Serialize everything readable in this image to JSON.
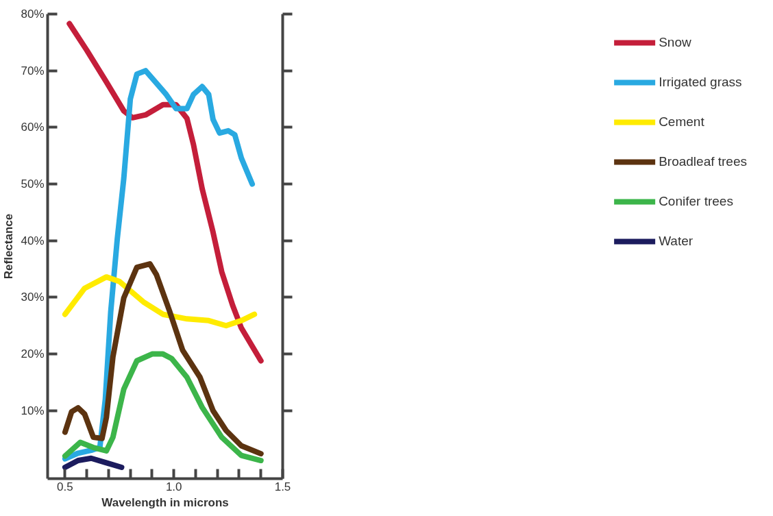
{
  "chart_data": {
    "type": "line",
    "xlabel": "Wavelength in microns",
    "ylabel": "Reflectance",
    "xlim": [
      0.42,
      1.5
    ],
    "ylim": [
      -2,
      80
    ],
    "xticks": [
      0.5,
      {
        "value": 0.6,
        "label": null
      },
      {
        "value": 0.7,
        "label": null
      },
      {
        "value": 0.8,
        "label": null
      },
      {
        "value": 0.9,
        "label": null
      },
      {
        "value": 1.0,
        "label": "1.0"
      },
      {
        "value": 1.1,
        "label": null
      },
      {
        "value": 1.2,
        "label": null
      },
      {
        "value": 1.3,
        "label": null
      },
      {
        "value": 1.4,
        "label": null
      },
      1.5
    ],
    "yticks": [
      {
        "value": 10,
        "label": "10%"
      },
      {
        "value": 20,
        "label": "20%"
      },
      {
        "value": 30,
        "label": "30%"
      },
      {
        "value": 40,
        "label": "40%"
      },
      {
        "value": 50,
        "label": "50%"
      },
      {
        "value": 60,
        "label": "60%"
      },
      {
        "value": 70,
        "label": "70%"
      },
      {
        "value": 80,
        "label": "80%"
      }
    ],
    "grid": false,
    "legend": "right",
    "marker": "none",
    "line_style": "solid",
    "series": [
      {
        "name": "Snow",
        "color": "#c41e3a",
        "x": [
          0.52,
          0.6,
          0.69,
          0.77,
          0.81,
          0.87,
          0.95,
          1.01,
          1.06,
          1.09,
          1.13,
          1.18,
          1.22,
          1.27,
          1.31,
          1.4
        ],
        "values": [
          78.3,
          73.6,
          68.0,
          62.9,
          61.7,
          62.2,
          64,
          64,
          61.6,
          57,
          49.2,
          41.5,
          34.5,
          28.6,
          24.6,
          18.8
        ]
      },
      {
        "name": "Irrigated grass",
        "color": "#29a9e1",
        "x": [
          0.5,
          0.56,
          0.62,
          0.66,
          0.685,
          0.71,
          0.74,
          0.77,
          0.8,
          0.83,
          0.87,
          0.92,
          0.965,
          1.01,
          1.06,
          1.09,
          1.13,
          1.16,
          1.18,
          1.21,
          1.25,
          1.28,
          1.31,
          1.36
        ],
        "values": [
          1.5,
          2.5,
          3,
          3.5,
          12,
          27.5,
          40.3,
          51,
          65,
          69.4,
          70,
          67.8,
          65.8,
          63.3,
          63.3,
          65.8,
          67.2,
          65.8,
          61.4,
          59,
          59.4,
          58.7,
          54.6,
          50
        ]
      },
      {
        "name": "Cement",
        "color": "#ffeb00",
        "x": [
          0.5,
          0.59,
          0.69,
          0.75,
          0.86,
          0.95,
          1.06,
          1.16,
          1.24,
          1.31,
          1.37
        ],
        "values": [
          27,
          31.6,
          33.6,
          32.8,
          29.2,
          27,
          26.2,
          25.9,
          25,
          25.9,
          27
        ]
      },
      {
        "name": "Broadleaf trees",
        "color": "#5c3310",
        "x": [
          0.5,
          0.53,
          0.56,
          0.59,
          0.63,
          0.67,
          0.69,
          0.72,
          0.77,
          0.83,
          0.89,
          0.92,
          0.98,
          1.04,
          1.12,
          1.18,
          1.24,
          1.31,
          1.4
        ],
        "values": [
          6.2,
          9.8,
          10.5,
          9.4,
          5.3,
          5.1,
          8.8,
          19.5,
          29.9,
          35.3,
          35.9,
          34,
          27.6,
          20.7,
          15.9,
          10,
          6.5,
          3.8,
          2.4
        ]
      },
      {
        "name": "Conifer trees",
        "color": "#3cb54a",
        "x": [
          0.5,
          0.57,
          0.63,
          0.69,
          0.72,
          0.77,
          0.83,
          0.9,
          0.95,
          0.99,
          1.06,
          1.13,
          1.22,
          1.31,
          1.4
        ],
        "values": [
          2,
          4.4,
          3.5,
          2.9,
          5.3,
          13.8,
          18.8,
          20,
          20,
          19.2,
          15.9,
          10.6,
          5.3,
          2.1,
          1.2
        ]
      },
      {
        "name": "Water",
        "color": "#1c1c5e",
        "x": [
          0.5,
          0.56,
          0.62,
          0.69,
          0.76
        ],
        "values": [
          0,
          1.2,
          1.6,
          0.8,
          0
        ]
      }
    ]
  }
}
